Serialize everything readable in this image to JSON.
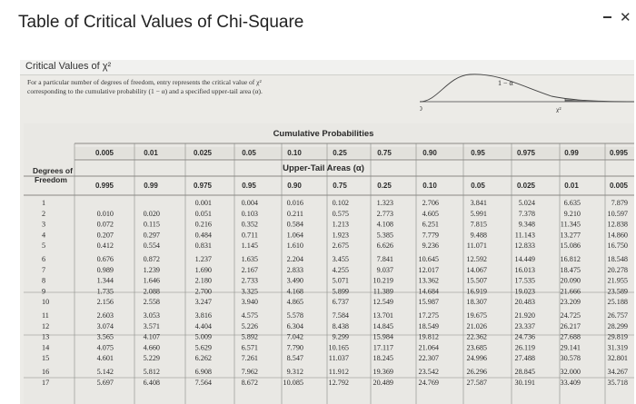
{
  "title": "Table of Critical Values of Chi-Square",
  "section_title": "Critical Values of χ²",
  "description_line1": "For a particular number of degrees of freedom, entry represents the critical value of χ²",
  "description_line2": "corresponding to the cumulative probability (1 − α) and a specified upper-tail area (α).",
  "figure_labels": {
    "one_minus_alpha": "1 − α",
    "zero": "0",
    "chi_square": "χ²"
  },
  "table": {
    "cumulative_title": "Cumulative Probabilities",
    "upper_tail_title": "Upper-Tail Areas (α)",
    "df_label_1": "Degrees of",
    "df_label_2": "Freedom",
    "cumulative": [
      "0.005",
      "0.01",
      "0.025",
      "0.05",
      "0.10",
      "0.25",
      "0.75",
      "0.90",
      "0.95",
      "0.975",
      "0.99",
      "0.995"
    ],
    "upper_tail": [
      "0.995",
      "0.99",
      "0.975",
      "0.95",
      "0.90",
      "0.75",
      "0.25",
      "0.10",
      "0.05",
      "0.025",
      "0.01",
      "0.005"
    ],
    "rows": [
      {
        "df": "1",
        "v": [
          "",
          "",
          "0.001",
          "0.004",
          "0.016",
          "0.102",
          "1.323",
          "2.706",
          "3.841",
          "5.024",
          "6.635",
          "7.879"
        ]
      },
      {
        "df": "2",
        "v": [
          "0.010",
          "0.020",
          "0.051",
          "0.103",
          "0.211",
          "0.575",
          "2.773",
          "4.605",
          "5.991",
          "7.378",
          "9.210",
          "10.597"
        ]
      },
      {
        "df": "3",
        "v": [
          "0.072",
          "0.115",
          "0.216",
          "0.352",
          "0.584",
          "1.213",
          "4.108",
          "6.251",
          "7.815",
          "9.348",
          "11.345",
          "12.838"
        ]
      },
      {
        "df": "4",
        "v": [
          "0.207",
          "0.297",
          "0.484",
          "0.711",
          "1.064",
          "1.923",
          "5.385",
          "7.779",
          "9.488",
          "11.143",
          "13.277",
          "14.860"
        ]
      },
      {
        "df": "5",
        "v": [
          "0.412",
          "0.554",
          "0.831",
          "1.145",
          "1.610",
          "2.675",
          "6.626",
          "9.236",
          "11.071",
          "12.833",
          "15.086",
          "16.750"
        ]
      },
      {
        "df": "6",
        "v": [
          "0.676",
          "0.872",
          "1.237",
          "1.635",
          "2.204",
          "3.455",
          "7.841",
          "10.645",
          "12.592",
          "14.449",
          "16.812",
          "18.548"
        ]
      },
      {
        "df": "7",
        "v": [
          "0.989",
          "1.239",
          "1.690",
          "2.167",
          "2.833",
          "4.255",
          "9.037",
          "12.017",
          "14.067",
          "16.013",
          "18.475",
          "20.278"
        ]
      },
      {
        "df": "8",
        "v": [
          "1.344",
          "1.646",
          "2.180",
          "2.733",
          "3.490",
          "5.071",
          "10.219",
          "13.362",
          "15.507",
          "17.535",
          "20.090",
          "21.955"
        ]
      },
      {
        "df": "9",
        "v": [
          "1.735",
          "2.088",
          "2.700",
          "3.325",
          "4.168",
          "5.899",
          "11.389",
          "14.684",
          "16.919",
          "19.023",
          "21.666",
          "23.589"
        ]
      },
      {
        "df": "10",
        "v": [
          "2.156",
          "2.558",
          "3.247",
          "3.940",
          "4.865",
          "6.737",
          "12.549",
          "15.987",
          "18.307",
          "20.483",
          "23.209",
          "25.188"
        ]
      },
      {
        "df": "11",
        "v": [
          "2.603",
          "3.053",
          "3.816",
          "4.575",
          "5.578",
          "7.584",
          "13.701",
          "17.275",
          "19.675",
          "21.920",
          "24.725",
          "26.757"
        ]
      },
      {
        "df": "12",
        "v": [
          "3.074",
          "3.571",
          "4.404",
          "5.226",
          "6.304",
          "8.438",
          "14.845",
          "18.549",
          "21.026",
          "23.337",
          "26.217",
          "28.299"
        ]
      },
      {
        "df": "13",
        "v": [
          "3.565",
          "4.107",
          "5.009",
          "5.892",
          "7.042",
          "9.299",
          "15.984",
          "19.812",
          "22.362",
          "24.736",
          "27.688",
          "29.819"
        ]
      },
      {
        "df": "14",
        "v": [
          "4.075",
          "4.660",
          "5.629",
          "6.571",
          "7.790",
          "10.165",
          "17.117",
          "21.064",
          "23.685",
          "26.119",
          "29.141",
          "31.319"
        ]
      },
      {
        "df": "15",
        "v": [
          "4.601",
          "5.229",
          "6.262",
          "7.261",
          "8.547",
          "11.037",
          "18.245",
          "22.307",
          "24.996",
          "27.488",
          "30.578",
          "32.801"
        ]
      },
      {
        "df": "16",
        "v": [
          "5.142",
          "5.812",
          "6.908",
          "7.962",
          "9.312",
          "11.912",
          "19.369",
          "23.542",
          "26.296",
          "28.845",
          "32.000",
          "34.267"
        ]
      },
      {
        "df": "17",
        "v": [
          "5.697",
          "6.408",
          "7.564",
          "8.672",
          "10.085",
          "12.792",
          "20.489",
          "24.769",
          "27.587",
          "30.191",
          "33.409",
          "35.718"
        ]
      }
    ]
  }
}
